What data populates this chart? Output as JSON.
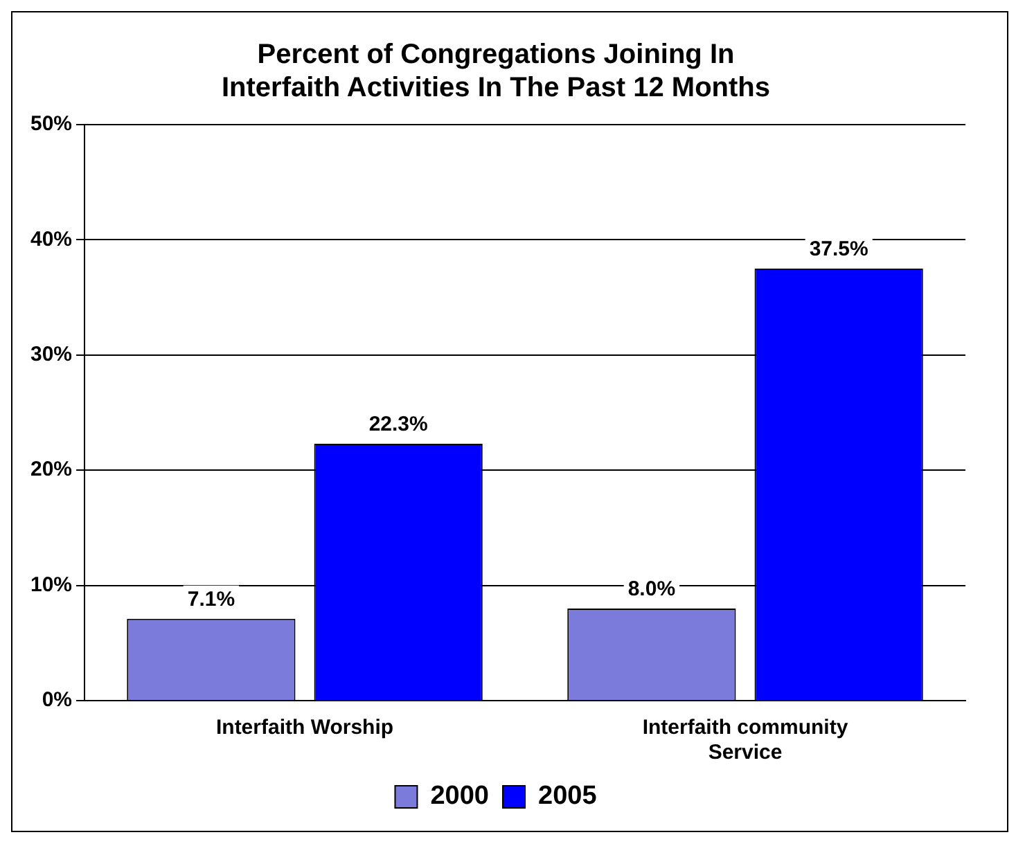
{
  "chart_data": {
    "type": "bar",
    "title": "Percent of Congregations Joining In\nInterfaith Activities In The Past 12 Months",
    "categories": [
      "Interfaith Worship",
      "Interfaith community\nService"
    ],
    "series": [
      {
        "name": "2000",
        "color": "#7b7bdb",
        "values": [
          7.1,
          8.0
        ],
        "value_labels": [
          "7.1%",
          "8.0%"
        ]
      },
      {
        "name": "2005",
        "color": "#0000ff",
        "values": [
          22.3,
          37.5
        ],
        "value_labels": [
          "22.3%",
          "37.5%"
        ]
      }
    ],
    "ylim": [
      0,
      50
    ],
    "yticks": [
      {
        "value": 0,
        "label": "0%"
      },
      {
        "value": 10,
        "label": "10%"
      },
      {
        "value": 20,
        "label": "20%"
      },
      {
        "value": 30,
        "label": "30%"
      },
      {
        "value": 40,
        "label": "40%"
      },
      {
        "value": 50,
        "label": "50%"
      }
    ],
    "grid": "y",
    "legend": "bottom"
  }
}
